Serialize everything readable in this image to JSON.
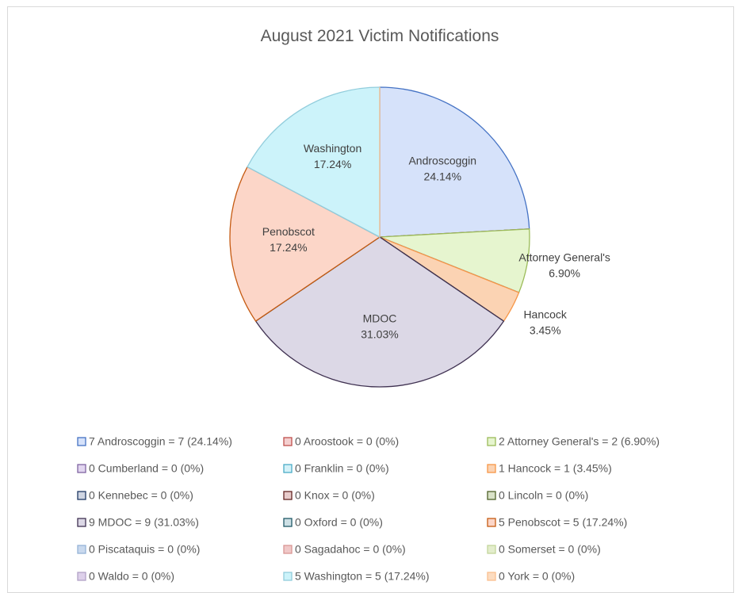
{
  "chart_data": {
    "type": "pie",
    "title": "August 2021 Victim Notifications",
    "categories": [
      "Androscoggin",
      "Aroostook",
      "Attorney General's",
      "Cumberland",
      "Franklin",
      "Hancock",
      "Kennebec",
      "Knox",
      "Lincoln",
      "MDOC",
      "Oxford",
      "Penobscot",
      "Piscataquis",
      "Sagadahoc",
      "Somerset",
      "Waldo",
      "Washington",
      "York"
    ],
    "values": [
      24.14,
      0,
      6.9,
      0,
      0,
      3.45,
      0,
      0,
      0,
      31.03,
      0,
      17.24,
      0,
      0,
      0,
      0,
      17.24,
      0
    ],
    "value_labels": [
      "24.14%",
      null,
      "6.90%",
      null,
      null,
      "3.45%",
      null,
      null,
      null,
      "31.03%",
      null,
      "17.24%",
      null,
      null,
      null,
      null,
      "17.24%",
      null
    ],
    "legend": [
      "7 Androscoggin = 7 (24.14%)",
      "0 Aroostook = 0 (0%)",
      "2 Attorney General's = 2 (6.90%)",
      "0 Cumberland = 0 (0%)",
      "0 Franklin = 0 (0%)",
      "1 Hancock = 1 (3.45%)",
      "0 Kennebec = 0 (0%)",
      "0 Knox = 0 (0%)",
      "0 Lincoln = 0 (0%)",
      "9 MDOC = 9 (31.03%)",
      "0 Oxford = 0 (0%)",
      "5 Penobscot = 5 (17.24%)",
      "0 Piscataquis = 0 (0%)",
      "0 Sagadahoc = 0 (0%)",
      "0 Somerset = 0 (0%)",
      "0 Waldo = 0 (0%)",
      "5 Washington = 5 (17.24%)",
      "0 York = 0 (0%)"
    ],
    "colors": [
      "#d6e2fa",
      "#f4cfcf",
      "#e6f5cf",
      "#e2d6f0",
      "#d4f1f8",
      "#fbd3b3",
      "#cfd5e2",
      "#e8cccc",
      "#d9e2c8",
      "#dcd8e6",
      "#cde0e5",
      "#fcd6c8",
      "#c9d9ee",
      "#f0c8c8",
      "#e3edcc",
      "#ddd0ea",
      "#ccf3fa",
      "#fcdcc0"
    ],
    "edge_colors": [
      "#4472c4",
      "#c0504d",
      "#9bbb59",
      "#8064a2",
      "#4bacc6",
      "#f79646",
      "#1f3864",
      "#632523",
      "#4f6228",
      "#3f3151",
      "#215967",
      "#c55a11",
      "#95b3d7",
      "#d99694",
      "#c3d69b",
      "#b2a2c7",
      "#92cddc",
      "#fabf8f"
    ]
  }
}
